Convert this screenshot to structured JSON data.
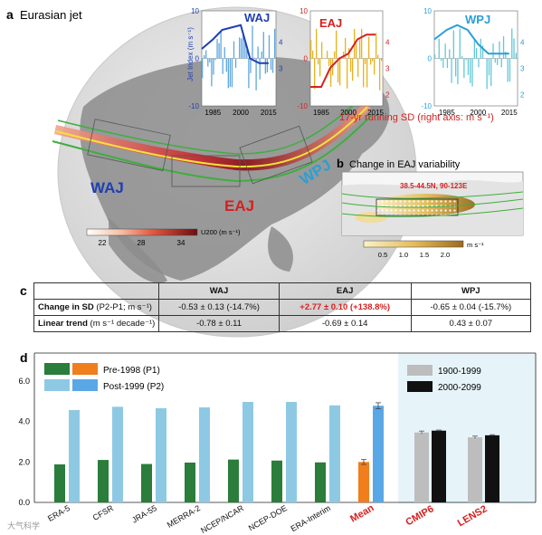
{
  "panel_a": {
    "letter": "a",
    "title": "Eurasian jet",
    "region_labels": [
      "WAJ",
      "EAJ",
      "WPJ"
    ],
    "colorbar": {
      "ticks": [
        "22",
        "28",
        "34"
      ],
      "label": "U200 (m s⁻¹)"
    },
    "left_axis_label": "Jet Index (m s⁻¹)",
    "right_axis_caption": "17-yr running SD (right axis: m s⁻¹)",
    "colors": {
      "waj": "#1f3fb4",
      "eaj": "#d62020",
      "wpj": "#2a9fd6",
      "waj_bars": "#5fa7dc",
      "eaj_bars": "#e8b21c",
      "wpj_bars": "#62c8d8"
    }
  },
  "panel_b": {
    "letter": "b",
    "title": "Change in EAJ variability",
    "region": "38.5-44.5N, 90-123E",
    "colorbar": {
      "ticks": [
        "0.5",
        "1.0",
        "1.5",
        "2.0"
      ],
      "unit": "m s⁻¹"
    }
  },
  "panel_c": {
    "letter": "c",
    "columns": [
      "WAJ",
      "EAJ",
      "WPJ"
    ],
    "rows": [
      {
        "label": "Change in SD",
        "unit": "(P2-P1; m s⁻¹)",
        "values": [
          "-0.53 ± 0.13 (-14.7%)",
          "+2.77 ± 0.10 (+138.8%)",
          "-0.65 ± 0.04 (-15.7%)"
        ]
      },
      {
        "label": "Linear trend",
        "unit": "(m s⁻¹ decade⁻¹)",
        "values": [
          "-0.78 ± 0.11",
          "-0.69 ± 0.14",
          "0.43 ± 0.07"
        ]
      }
    ]
  },
  "panel_d": {
    "letter": "d",
    "legend_left": [
      {
        "name": "Pre-1998 (P1)",
        "colors": [
          "#2a7d3a",
          "#f07e1c"
        ]
      },
      {
        "name": "Post-1999 (P2)",
        "colors": [
          "#8ec9e4",
          "#5aa7e6"
        ]
      }
    ],
    "legend_right": [
      {
        "name": "1900-1999",
        "color": "#bdbdbd"
      },
      {
        "name": "2000-2099",
        "color": "#111111"
      }
    ],
    "watermark": "大气科学"
  },
  "chart_data": [
    {
      "type": "line",
      "title": "WAJ",
      "x": [
        1979,
        1985,
        1990,
        1995,
        2000,
        2005,
        2010,
        2015
      ],
      "ylabel": "Jet Index (m s⁻¹)",
      "ylim": [
        -10,
        10
      ],
      "y2lim": [
        2,
        4
      ],
      "xticks": [
        1985,
        2000,
        2015
      ],
      "yticks": [
        -10,
        0,
        10
      ],
      "y2ticks": [
        3,
        4
      ],
      "series": [
        {
          "name": "WAJ",
          "values": [
            2,
            4,
            6,
            6.5,
            7,
            0,
            -1,
            -1
          ]
        }
      ]
    },
    {
      "type": "line",
      "title": "EAJ",
      "x": [
        1979,
        1985,
        1990,
        1995,
        2000,
        2005,
        2010,
        2015
      ],
      "ylim": [
        -10,
        10
      ],
      "y2lim": [
        2,
        4
      ],
      "xticks": [
        1985,
        2000,
        2015
      ],
      "yticks": [
        -10,
        0,
        10
      ],
      "y2ticks": [
        2,
        3,
        4
      ],
      "series": [
        {
          "name": "EAJ",
          "values": [
            -6,
            -6,
            -2,
            0,
            1,
            4,
            5,
            5
          ]
        }
      ]
    },
    {
      "type": "line",
      "title": "WPJ",
      "x": [
        1979,
        1985,
        1990,
        1995,
        2000,
        2005,
        2010,
        2015
      ],
      "ylim": [
        -10,
        10
      ],
      "y2lim": [
        2,
        4
      ],
      "xticks": [
        1985,
        2000,
        2015
      ],
      "yticks": [
        -10,
        0,
        10
      ],
      "y2ticks": [
        2,
        3,
        4
      ],
      "series": [
        {
          "name": "WPJ",
          "values": [
            4,
            6,
            7,
            6,
            3,
            1,
            1,
            1
          ]
        }
      ]
    },
    {
      "type": "bar",
      "categories": [
        "ERA-5",
        "CFSR",
        "JRA-55",
        "MERRA-2",
        "NCEP/NCAR",
        "NCEP-DOE",
        "ERA-Interim",
        "Mean"
      ],
      "ylim": [
        0,
        6
      ],
      "yticks": [
        "0.0",
        "2.0",
        "4.0",
        "6.0"
      ],
      "series": [
        {
          "name": "Pre-1998 (P1)",
          "values": [
            1.88,
            2.1,
            1.9,
            1.97,
            2.12,
            2.07,
            1.98,
            2.0
          ],
          "error": [
            0,
            0,
            0,
            0,
            0,
            0,
            0,
            0.12
          ]
        },
        {
          "name": "Post-1999 (P2)",
          "values": [
            4.57,
            4.73,
            4.66,
            4.7,
            4.97,
            4.97,
            4.8,
            4.78
          ],
          "error": [
            0,
            0,
            0,
            0,
            0,
            0,
            0,
            0.15
          ]
        }
      ]
    },
    {
      "type": "bar",
      "categories": [
        "CMIP6",
        "LENS2"
      ],
      "ylim": [
        0,
        6
      ],
      "series": [
        {
          "name": "1900-1999",
          "values": [
            3.46,
            3.22
          ],
          "error": [
            0.07,
            0.06
          ]
        },
        {
          "name": "2000-2099",
          "values": [
            3.55,
            3.32
          ],
          "error": [
            0.03,
            0.03
          ]
        }
      ]
    }
  ]
}
